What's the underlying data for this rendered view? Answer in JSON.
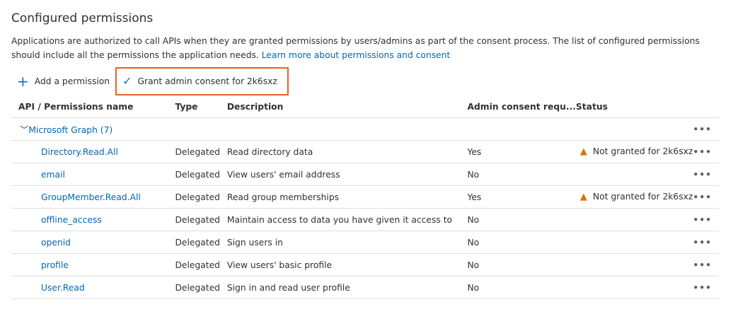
{
  "title": "Configured permissions",
  "description": "Applications are authorized to call APIs when they are granted permissions by users/admins as part of the consent process. The list of configured permissions should include all the permissions the application needs. ",
  "learn_more": "Learn more about permissions and consent",
  "toolbar": {
    "add": "Add a permission",
    "grant": "Grant admin consent for 2k6sxz"
  },
  "columns": [
    "API / Permissions name",
    "Type",
    "Description",
    "Admin consent requ...",
    "Status"
  ],
  "group": "Microsoft Graph (7)",
  "more": "•••",
  "rows": [
    {
      "name": "Directory.Read.All",
      "type": "Delegated",
      "description": "Read directory data",
      "admin": "Yes",
      "status": "Not granted for 2k6sxz"
    },
    {
      "name": "email",
      "type": "Delegated",
      "description": "View users' email address",
      "admin": "No",
      "status": ""
    },
    {
      "name": "GroupMember.Read.All",
      "type": "Delegated",
      "description": "Read group memberships",
      "admin": "Yes",
      "status": "Not granted for 2k6sxz"
    },
    {
      "name": "offline_access",
      "type": "Delegated",
      "description": "Maintain access to data you have given it access to",
      "admin": "No",
      "status": ""
    },
    {
      "name": "openid",
      "type": "Delegated",
      "description": "Sign users in",
      "admin": "No",
      "status": ""
    },
    {
      "name": "profile",
      "type": "Delegated",
      "description": "View users' basic profile",
      "admin": "No",
      "status": ""
    },
    {
      "name": "User.Read",
      "type": "Delegated",
      "description": "Sign in and read user profile",
      "admin": "No",
      "status": ""
    }
  ]
}
